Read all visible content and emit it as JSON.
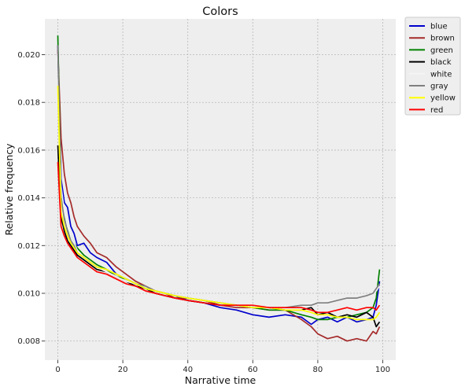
{
  "chart_data": {
    "type": "line",
    "title": "Colors",
    "xlabel": "Narrative time",
    "ylabel": "Relative frequency",
    "xlim": [
      -4,
      104
    ],
    "ylim": [
      0.0072,
      0.0215
    ],
    "x_ticks": [
      0,
      20,
      40,
      60,
      80,
      100
    ],
    "y_ticks": [
      0.008,
      0.01,
      0.012,
      0.014,
      0.016,
      0.018,
      0.02
    ],
    "y_tick_labels": [
      "0.008",
      "0.010",
      "0.012",
      "0.014",
      "0.016",
      "0.018",
      "0.020"
    ],
    "grid": true,
    "legend_placement": "outside-top-right",
    "x": [
      0,
      1,
      2,
      3,
      4,
      5,
      6,
      8,
      10,
      12,
      15,
      18,
      21,
      24,
      27,
      30,
      33,
      36,
      40,
      45,
      50,
      55,
      60,
      65,
      70,
      75,
      78,
      80,
      83,
      86,
      89,
      92,
      95,
      97,
      98,
      99
    ],
    "series": [
      {
        "name": "blue",
        "color": "#0000cc",
        "values": [
          0.0204,
          0.0148,
          0.0138,
          0.0136,
          0.0128,
          0.0125,
          0.012,
          0.0121,
          0.0117,
          0.0115,
          0.0113,
          0.0108,
          0.0106,
          0.0104,
          0.0102,
          0.0101,
          0.01,
          0.0099,
          0.0097,
          0.0096,
          0.0094,
          0.0093,
          0.0091,
          0.009,
          0.0091,
          0.009,
          0.0087,
          0.0089,
          0.009,
          0.0088,
          0.009,
          0.0088,
          0.0089,
          0.009,
          0.0095,
          0.0105
        ]
      },
      {
        "name": "brown",
        "color": "#a52a2a",
        "values": [
          0.0202,
          0.0165,
          0.015,
          0.0142,
          0.0138,
          0.0132,
          0.0128,
          0.0124,
          0.0121,
          0.0117,
          0.0115,
          0.0111,
          0.0108,
          0.0105,
          0.0103,
          0.0101,
          0.01,
          0.0098,
          0.0098,
          0.0097,
          0.0095,
          0.0094,
          0.0094,
          0.0093,
          0.0093,
          0.0089,
          0.0086,
          0.0083,
          0.0081,
          0.0082,
          0.008,
          0.0081,
          0.008,
          0.0084,
          0.0083,
          0.0086
        ]
      },
      {
        "name": "green",
        "color": "#008000",
        "values": [
          0.0208,
          0.0142,
          0.0132,
          0.0127,
          0.0124,
          0.0121,
          0.0119,
          0.0116,
          0.0114,
          0.0112,
          0.011,
          0.0107,
          0.0106,
          0.0104,
          0.0102,
          0.0101,
          0.01,
          0.0099,
          0.0098,
          0.0097,
          0.0096,
          0.0095,
          0.0094,
          0.0093,
          0.0093,
          0.0091,
          0.009,
          0.0089,
          0.0089,
          0.009,
          0.009,
          0.0091,
          0.0092,
          0.0094,
          0.0098,
          0.011
        ]
      },
      {
        "name": "black",
        "color": "#000000",
        "values": [
          0.0162,
          0.0132,
          0.0126,
          0.0122,
          0.012,
          0.0118,
          0.0116,
          0.0114,
          0.0112,
          0.011,
          0.0109,
          0.0107,
          0.0105,
          0.0103,
          0.0102,
          0.01,
          0.0099,
          0.0098,
          0.0097,
          0.0096,
          0.0095,
          0.0095,
          0.0094,
          0.0094,
          0.0093,
          0.0093,
          0.0094,
          0.0091,
          0.0092,
          0.009,
          0.0091,
          0.009,
          0.0092,
          0.009,
          0.0086,
          0.0088
        ]
      },
      {
        "name": "white",
        "color": "#f4f4f4",
        "values": [
          0.019,
          0.0145,
          0.0134,
          0.0128,
          0.0124,
          0.0121,
          0.0118,
          0.0115,
          0.0113,
          0.0111,
          0.0109,
          0.0107,
          0.0105,
          0.0104,
          0.0102,
          0.0101,
          0.01,
          0.0099,
          0.0098,
          0.0097,
          0.0096,
          0.0095,
          0.0094,
          0.0094,
          0.0094,
          0.0095,
          0.0096,
          0.0096,
          0.0097,
          0.0097,
          0.0098,
          0.0098,
          0.0099,
          0.01,
          0.0101,
          0.0103
        ]
      },
      {
        "name": "gray",
        "color": "#7f7f7f",
        "values": [
          0.0204,
          0.014,
          0.0131,
          0.0126,
          0.0122,
          0.012,
          0.0117,
          0.0115,
          0.0113,
          0.0111,
          0.011,
          0.0108,
          0.0106,
          0.0104,
          0.0103,
          0.0101,
          0.01,
          0.0099,
          0.0098,
          0.0097,
          0.0096,
          0.0095,
          0.0094,
          0.0094,
          0.0094,
          0.0095,
          0.0095,
          0.0096,
          0.0096,
          0.0097,
          0.0098,
          0.0098,
          0.0099,
          0.01,
          0.0102,
          0.0104
        ]
      },
      {
        "name": "yellow",
        "color": "#ffff00",
        "values": [
          0.0187,
          0.0134,
          0.0128,
          0.0124,
          0.0121,
          0.0119,
          0.0117,
          0.0115,
          0.0113,
          0.0111,
          0.011,
          0.0108,
          0.0106,
          0.0104,
          0.0102,
          0.0101,
          0.01,
          0.0099,
          0.0098,
          0.0097,
          0.0096,
          0.0095,
          0.0094,
          0.0094,
          0.0093,
          0.0093,
          0.0092,
          0.0091,
          0.0091,
          0.009,
          0.009,
          0.0089,
          0.0089,
          0.0089,
          0.009,
          0.0092
        ]
      },
      {
        "name": "red",
        "color": "#ff0000",
        "values": [
          0.0155,
          0.0128,
          0.0124,
          0.0121,
          0.0119,
          0.0117,
          0.0115,
          0.0113,
          0.0111,
          0.0109,
          0.0108,
          0.0106,
          0.0104,
          0.0103,
          0.0101,
          0.01,
          0.0099,
          0.0098,
          0.0097,
          0.0096,
          0.0095,
          0.0095,
          0.0095,
          0.0094,
          0.0094,
          0.0094,
          0.0093,
          0.0092,
          0.0092,
          0.0093,
          0.0094,
          0.0093,
          0.0094,
          0.0094,
          0.0093,
          0.0095
        ]
      }
    ]
  }
}
